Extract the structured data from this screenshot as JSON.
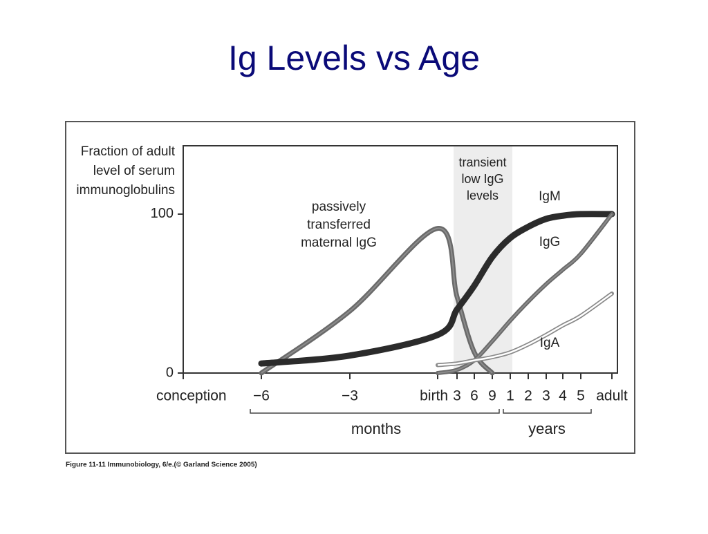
{
  "slide_title": "Ig Levels vs Age",
  "caption": "Figure 11-11  Immunobiology, 6/e.(© Garland Science 2005)",
  "chart_data": {
    "type": "line",
    "y_label": [
      "Fraction of adult",
      "level of serum",
      "immunoglobulins"
    ],
    "categories": [
      "conception",
      "−6",
      "−3",
      "birth",
      "3",
      "6",
      "9",
      "1",
      "2",
      "3",
      "4",
      "5",
      "adult"
    ],
    "groups": [
      "months",
      "years"
    ],
    "shaded_region_label": [
      "transient",
      "low IgG",
      "levels"
    ],
    "ylim": [
      0,
      143
    ],
    "yticks": [
      0,
      100
    ],
    "series": [
      {
        "name": [
          "passively",
          "transferred",
          "maternal IgG"
        ],
        "color": "#6a6a6a",
        "values": [
          null,
          0,
          39,
          91,
          48,
          13,
          0,
          null,
          null,
          null,
          null,
          null,
          null
        ]
      },
      {
        "name": [
          "IgM"
        ],
        "color": "#2b2b2b",
        "values": [
          null,
          6,
          11,
          24,
          40,
          55,
          73,
          85,
          92,
          97,
          99,
          100,
          100
        ]
      },
      {
        "name": [
          "IgG"
        ],
        "color": "#6a6a6a",
        "values": [
          null,
          null,
          null,
          0,
          2,
          8,
          20,
          33,
          45,
          56,
          65,
          75,
          100
        ]
      },
      {
        "name": [
          "IgA"
        ],
        "color": "#8a8a8a",
        "values": [
          null,
          null,
          null,
          5,
          6,
          8,
          10,
          13,
          18,
          24,
          30,
          36,
          50
        ]
      }
    ]
  }
}
